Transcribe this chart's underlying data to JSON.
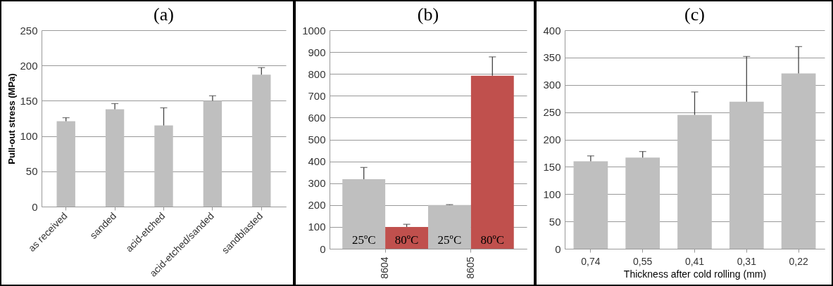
{
  "chart_data": [
    {
      "type": "bar",
      "title": "(a)",
      "ylabel": "Pull-out stress (MPa)",
      "categories": [
        "as received",
        "sanded",
        "acid-etched",
        "acid-etched/sanded",
        "sandblasted"
      ],
      "values": [
        121,
        138,
        115,
        150,
        187
      ],
      "errors": [
        [
          121,
          126
        ],
        [
          138,
          146
        ],
        [
          115,
          140
        ],
        [
          150,
          157
        ],
        [
          187,
          197
        ]
      ],
      "color": "#bfbfbf",
      "ylim": [
        0,
        250
      ],
      "yticks": [
        0,
        50,
        100,
        150,
        200,
        250
      ],
      "grid": "y"
    },
    {
      "type": "bar",
      "title": "(b)",
      "categories": [
        "8604",
        "8605"
      ],
      "series": [
        {
          "name": "25ºC",
          "color": "#bfbfbf",
          "values": [
            318,
            200
          ],
          "errors": [
            [
              318,
              372
            ],
            [
              200,
              202
            ]
          ]
        },
        {
          "name": "80ºC",
          "color": "#c0504d",
          "values": [
            100,
            792
          ],
          "errors": [
            [
              100,
              112
            ],
            [
              792,
              878
            ]
          ]
        }
      ],
      "ylim": [
        0,
        1000
      ],
      "yticks": [
        0,
        100,
        200,
        300,
        400,
        500,
        600,
        700,
        800,
        900,
        1000
      ],
      "grid": "y"
    },
    {
      "type": "bar",
      "title": "(c)",
      "xlabel": "Thickness after cold rolling (mm)",
      "categories": [
        "0,74",
        "0,55",
        "0,41",
        "0,31",
        "0,22"
      ],
      "values": [
        160,
        167,
        245,
        269,
        321
      ],
      "errors": [
        [
          160,
          170
        ],
        [
          167,
          178
        ],
        [
          245,
          287
        ],
        [
          269,
          352
        ],
        [
          321,
          370
        ]
      ],
      "color": "#bfbfbf",
      "ylim": [
        0,
        400
      ],
      "yticks": [
        0,
        50,
        100,
        150,
        200,
        250,
        300,
        350,
        400
      ],
      "grid": "y"
    }
  ]
}
